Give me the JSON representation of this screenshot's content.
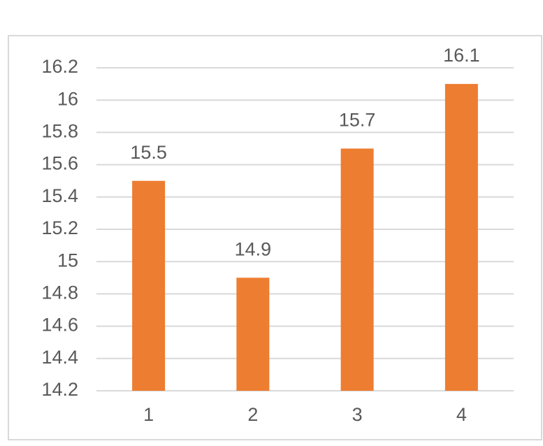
{
  "chart_data": {
    "type": "bar",
    "categories": [
      "1",
      "2",
      "3",
      "4"
    ],
    "values": [
      15.5,
      14.9,
      15.7,
      16.1
    ],
    "color": "#ed7d31",
    "ylim": [
      14.2,
      16.2
    ],
    "yticks": [
      14.2,
      14.4,
      14.6,
      14.8,
      15,
      15.2,
      15.4,
      15.6,
      15.8,
      16,
      16.2
    ],
    "grid": true
  }
}
